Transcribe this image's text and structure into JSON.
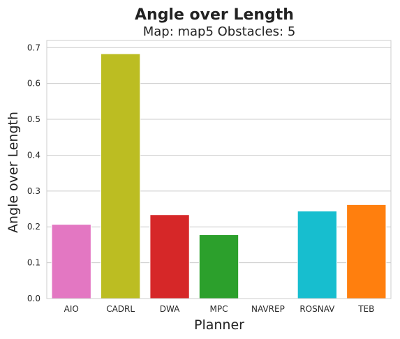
{
  "chart_data": {
    "type": "bar",
    "suptitle": "Angle over Length",
    "title": "Map: map5 Obstacles: 5",
    "xlabel": "Planner",
    "ylabel": "Angle over Length",
    "categories": [
      "AIO",
      "CADRL",
      "DWA",
      "MPC",
      "NAVREP",
      "ROSNAV",
      "TEB"
    ],
    "values": [
      0.207,
      0.683,
      0.234,
      0.178,
      0.0,
      0.244,
      0.262
    ],
    "colors": [
      "#e377c2",
      "#bcbd22",
      "#d62728",
      "#2ca02c",
      "#7f7f7f",
      "#17becf",
      "#ff7f0e"
    ],
    "ylim": [
      0,
      0.72
    ],
    "yticks": [
      "0.0",
      "0.1",
      "0.2",
      "0.3",
      "0.4",
      "0.5",
      "0.6",
      "0.7"
    ],
    "grid": true,
    "style": "whitegrid"
  }
}
